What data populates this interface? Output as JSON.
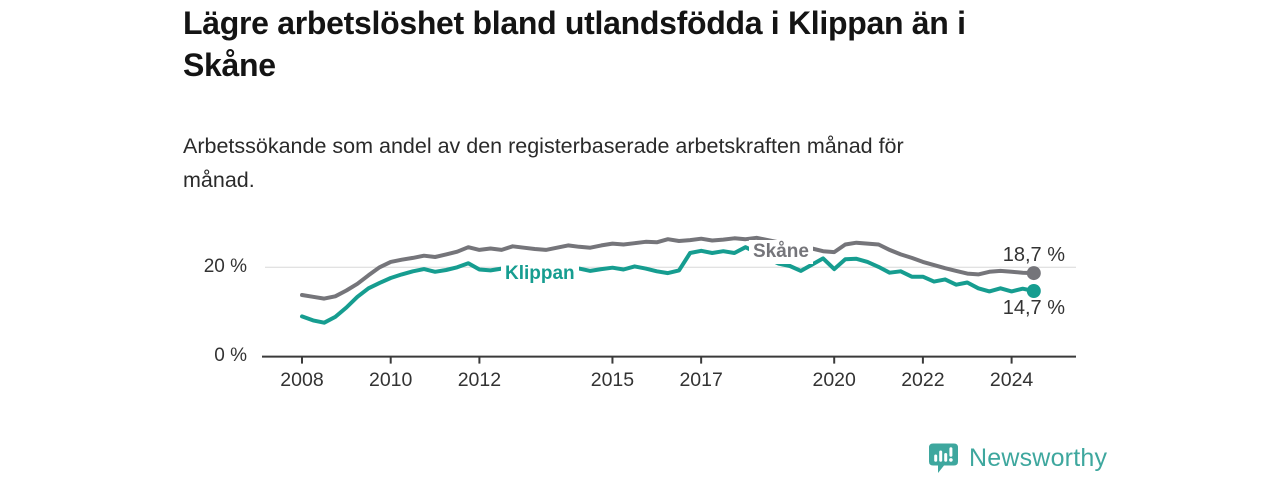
{
  "header": {
    "title_lines": [
      "Lägre arbetslöshet bland utlandsfödda i Klippan än i",
      "Skåne"
    ],
    "subtitle_lines": [
      "Arbetssökande som andel av den registerbaserade arbetskraften månad för",
      "månad."
    ]
  },
  "chart_data": {
    "type": "line",
    "title": "Lägre arbetslöshet bland utlandsfödda i Klippan än i Skåne",
    "subtitle": "Arbetssökande som andel av den registerbaserade arbetskraften månad för månad.",
    "xlabel": "",
    "ylabel": "",
    "x_unit": "year (monthly data)",
    "xlim": [
      2007.75,
      2025.4
    ],
    "ylim": [
      0,
      30
    ],
    "grid": "single horizontal gridline at 20 %",
    "legend": "inline labels on lines",
    "x_ticks": [
      "2008",
      "2010",
      "2012",
      "2015",
      "2017",
      "2020",
      "2022",
      "2024"
    ],
    "y_ticks": [
      {
        "value": 0,
        "label": "0 %"
      },
      {
        "value": 20,
        "label": "20 %"
      }
    ],
    "series": [
      {
        "name": "Skåne",
        "color": "#75757a",
        "x_start": 2008.0,
        "x_step_years": 0.25,
        "end_value_label": "18,7 %",
        "final_value": 18.7,
        "values": [
          13.8,
          13.4,
          13.0,
          13.5,
          14.8,
          16.3,
          18.2,
          20.0,
          21.2,
          21.7,
          22.1,
          22.6,
          22.3,
          22.9,
          23.5,
          24.5,
          23.9,
          24.2,
          23.9,
          24.7,
          24.4,
          24.1,
          23.9,
          24.4,
          24.9,
          24.6,
          24.4,
          24.9,
          25.3,
          25.1,
          25.4,
          25.7,
          25.6,
          26.3,
          25.9,
          26.1,
          26.4,
          26.0,
          26.2,
          26.5,
          26.3,
          26.6,
          26.1,
          25.6,
          25.1,
          24.7,
          24.2,
          23.6,
          23.4,
          25.1,
          25.5,
          25.3,
          25.1,
          23.9,
          22.9,
          22.1,
          21.2,
          20.5,
          19.8,
          19.2,
          18.6,
          18.4,
          19.0,
          19.2,
          19.0,
          18.8,
          18.7
        ]
      },
      {
        "name": "Klippan",
        "color": "#169d90",
        "x_start": 2008.0,
        "x_step_years": 0.25,
        "end_value_label": "14,7 %",
        "final_value": 14.7,
        "values": [
          9.0,
          8.1,
          7.6,
          8.9,
          11.0,
          13.4,
          15.3,
          16.5,
          17.6,
          18.4,
          19.1,
          19.6,
          19.0,
          19.4,
          20.0,
          20.9,
          19.5,
          19.3,
          19.7,
          19.4,
          19.6,
          19.2,
          19.5,
          19.3,
          19.5,
          19.7,
          19.2,
          19.6,
          19.9,
          19.5,
          20.2,
          19.7,
          19.1,
          18.7,
          19.3,
          23.2,
          23.7,
          23.2,
          23.6,
          23.2,
          24.5,
          23.3,
          22.0,
          20.8,
          20.3,
          19.2,
          20.6,
          22.0,
          19.6,
          21.8,
          21.9,
          21.2,
          20.1,
          18.8,
          19.1,
          17.9,
          17.9,
          16.8,
          17.3,
          16.1,
          16.6,
          15.3,
          14.6,
          15.3,
          14.6,
          15.2,
          14.7
        ]
      }
    ],
    "colors": {
      "axis": "#3a3a3a",
      "gridline": "#d8d8d8",
      "tick_text": "#333333",
      "title_text": "#141414"
    }
  },
  "branding": {
    "logo_text": "Newsworthy",
    "logo_color": "#3ea79e",
    "logo_icon": "bar-chart-speech-bubble"
  }
}
